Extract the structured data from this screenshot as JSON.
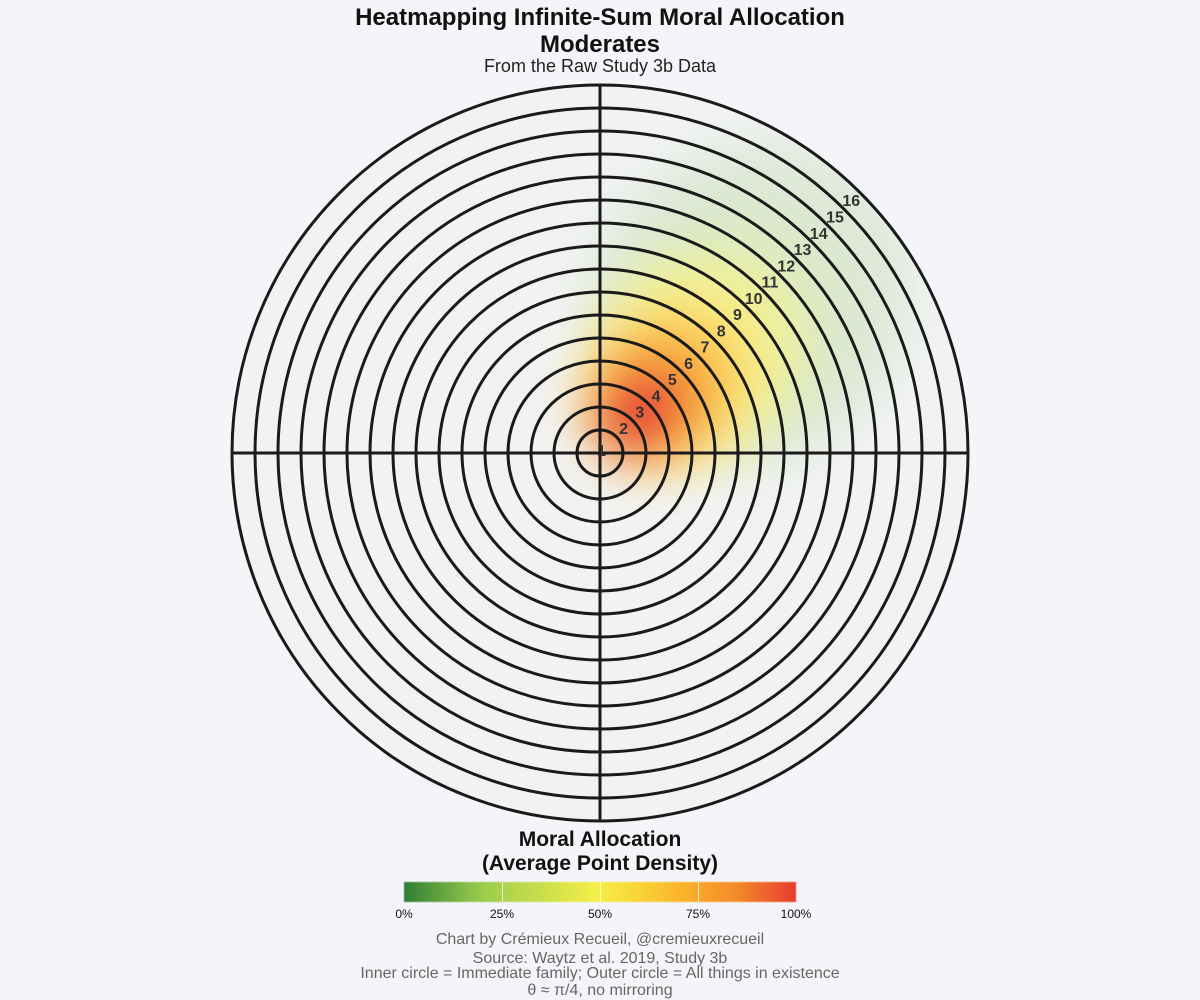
{
  "header": {
    "title_line1": "Heatmapping Infinite-Sum Moral Allocation",
    "title_line2": "Moderates",
    "subtitle": "From the Raw Study 3b Data"
  },
  "legend": {
    "title_line1": "Moral Allocation",
    "title_line2": "(Average Point Density)",
    "ticks": [
      "0%",
      "25%",
      "50%",
      "75%",
      "100%"
    ]
  },
  "caption": {
    "line1": "Chart by Crémieux Recueil, @cremieuxrecueil",
    "line2": "Source: Waytz et al. 2019, Study 3b",
    "line3": "Inner circle = Immediate family; Outer circle = All things in existence",
    "line4": "θ ≈ π/4, no mirroring"
  },
  "chart_data": {
    "type": "heatmap",
    "projection": "polar",
    "rings": [
      "1",
      "2",
      "3",
      "4",
      "5",
      "6",
      "7",
      "8",
      "9",
      "10",
      "11",
      "12",
      "13",
      "14",
      "15",
      "16"
    ],
    "label_angle_deg": 45,
    "density_peak": {
      "ring": 2.5,
      "angle_deg": 45,
      "value_pct": 100
    },
    "color_scale": {
      "min_pct": 0,
      "max_pct": 100,
      "colors": [
        "#2f7f34",
        "#9ccc4d",
        "#f7ef48",
        "#fbb62a",
        "#e63b30"
      ]
    },
    "quadrant_lines": true
  }
}
